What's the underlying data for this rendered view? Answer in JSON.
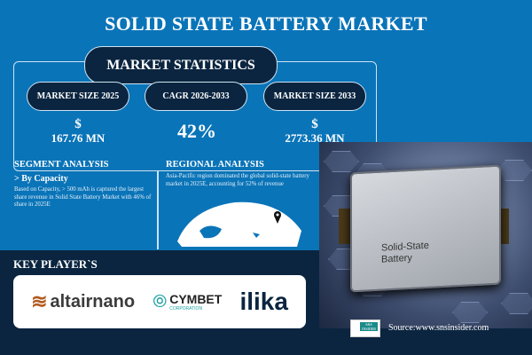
{
  "title": "SOLID STATE BATTERY MARKET",
  "stats": {
    "heading": "MARKET STATISTICS",
    "items": [
      {
        "label": "MARKET SIZE 2025",
        "currency": "$",
        "value": "167.76 MN"
      },
      {
        "label": "CAGR 2026-2033",
        "currency": "",
        "value": "42%"
      },
      {
        "label": "MARKET SIZE 2033",
        "currency": "$",
        "value": "2773.36 MN"
      }
    ]
  },
  "segment": {
    "heading": "SEGMENT ANALYSIS",
    "sub": "> By Capacity",
    "text": "Based on Capacity, > 500 mAh is captured the largest share revenue in Solid State Battery Market with 46% of share in 2025E"
  },
  "regional": {
    "heading": "REGIONAL ANALYSIS",
    "text": "Asia-Pacific region dominated the global solid-state battery market in 2025E, accounting for 52% of revenue"
  },
  "image": {
    "cell_label": "Solid-State Battery"
  },
  "key_players": {
    "heading": "KEY PLAYER`S",
    "logos": [
      "altairnano",
      "CYMBET",
      "CORPORATION",
      "ilika"
    ]
  },
  "source": {
    "label": "Source:www.snsinsider.com",
    "logo": "S&S INSIDER Strategy & Stats"
  },
  "colors": {
    "background": "#0a74b8",
    "navy": "#0b2540"
  }
}
